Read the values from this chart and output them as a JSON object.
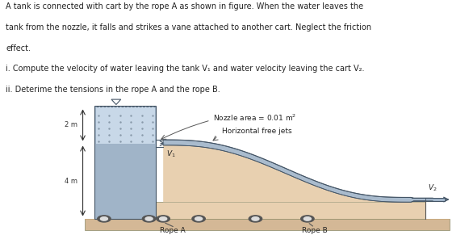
{
  "text_lines": [
    "A tank is connected with cart by the rope A as shown in figure. When the water leaves the",
    "tank from the nozzle, it falls and strikes a vane attached to another cart. Neglect the friction",
    "effect.",
    "i. Compute the velocity of water leaving the tank V₁ and water velocity leaving the cart V₂.",
    "ii. Deterime the tensions in the rope A and the rope B."
  ],
  "colors": {
    "tank_body": "#a0b4c8",
    "tank_water_top": "#c8d8e8",
    "vane_fill": "#e8d0b0",
    "ground_top": "#c8aa80",
    "ground_body": "#d4b896",
    "wheel_outer": "#555555",
    "wheel_inner": "#aaaaaa",
    "text_color": "#222222",
    "arrow_color": "#445566",
    "water_stream": "#a0b4c8",
    "water_stream_edge": "#445566"
  },
  "fig_width": 5.86,
  "fig_height": 2.91,
  "dpi": 100
}
